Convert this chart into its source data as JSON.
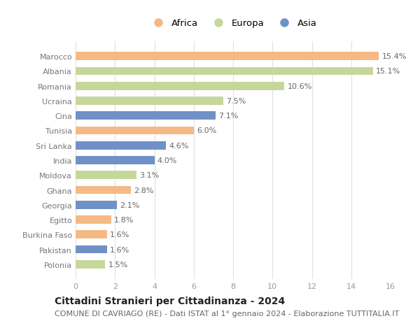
{
  "categories": [
    "Polonia",
    "Pakistan",
    "Burkina Faso",
    "Egitto",
    "Georgia",
    "Ghana",
    "Moldova",
    "India",
    "Sri Lanka",
    "Tunisia",
    "Cina",
    "Ucraina",
    "Romania",
    "Albania",
    "Marocco"
  ],
  "values": [
    1.5,
    1.6,
    1.6,
    1.8,
    2.1,
    2.8,
    3.1,
    4.0,
    4.6,
    6.0,
    7.1,
    7.5,
    10.6,
    15.1,
    15.4
  ],
  "continents": [
    "Europa",
    "Asia",
    "Africa",
    "Africa",
    "Asia",
    "Africa",
    "Europa",
    "Asia",
    "Asia",
    "Africa",
    "Asia",
    "Europa",
    "Europa",
    "Europa",
    "Africa"
  ],
  "colors": {
    "Africa": "#F5B985",
    "Europa": "#C5D89A",
    "Asia": "#7090C8"
  },
  "xlim": [
    0,
    16
  ],
  "xticks": [
    0,
    2,
    4,
    6,
    8,
    10,
    12,
    14,
    16
  ],
  "title": "Cittadini Stranieri per Cittadinanza - 2024",
  "subtitle": "COMUNE DI CAVRIAGO (RE) - Dati ISTAT al 1° gennaio 2024 - Elaborazione TUTTITALIA.IT",
  "title_fontsize": 10,
  "subtitle_fontsize": 8,
  "bar_height": 0.55,
  "grid_color": "#e0e0e0",
  "background_color": "#ffffff",
  "label_fontsize": 8,
  "ytick_fontsize": 8,
  "xtick_fontsize": 8
}
